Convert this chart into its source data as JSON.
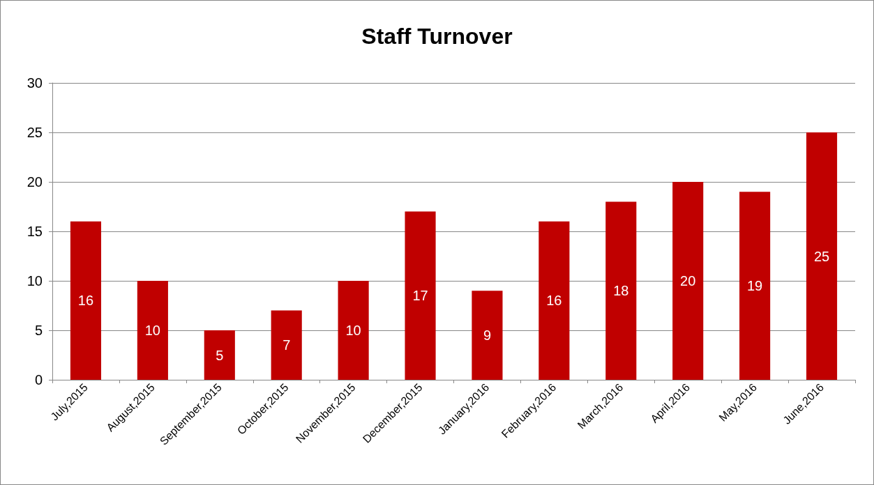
{
  "chart_data": {
    "type": "bar",
    "title": "Staff Turnover",
    "categories": [
      "July,2015",
      "August,2015",
      "September,2015",
      "October,2015",
      "November,2015",
      "December,2015",
      "January,2016",
      "February,2016",
      "March,2016",
      "April,2016",
      "May,2016",
      "June,2016"
    ],
    "values": [
      16,
      10,
      5,
      7,
      10,
      17,
      9,
      16,
      18,
      20,
      19,
      25
    ],
    "color": "#c00000",
    "ylim": [
      0,
      30
    ],
    "yticks": [
      0,
      5,
      10,
      15,
      20,
      25,
      30
    ],
    "grid": "y",
    "data_labels": true
  }
}
